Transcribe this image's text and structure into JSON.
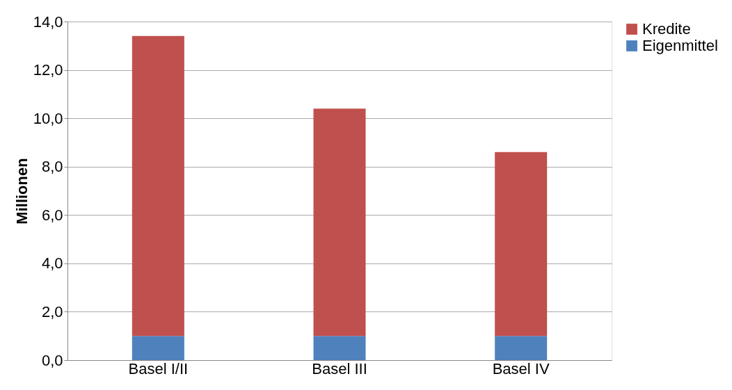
{
  "chart_data": {
    "type": "bar",
    "stacked": true,
    "ylabel": "Millionen",
    "categories": [
      "Basel I/II",
      "Basel III",
      "Basel IV"
    ],
    "series": [
      {
        "name": "Eigenmittel",
        "color": "#4f81bd",
        "values": [
          1.0,
          1.0,
          1.0
        ]
      },
      {
        "name": "Kredite",
        "color": "#c0504d",
        "values": [
          12.4,
          9.4,
          7.6
        ]
      }
    ],
    "ylim": [
      0,
      14
    ],
    "yticks": [
      {
        "value": 0,
        "label": "0,0"
      },
      {
        "value": 2,
        "label": "2,0"
      },
      {
        "value": 4,
        "label": "4,0"
      },
      {
        "value": 6,
        "label": "6,0"
      },
      {
        "value": 8,
        "label": "8,0"
      },
      {
        "value": 10,
        "label": "10,0"
      },
      {
        "value": 12,
        "label": "12,0"
      },
      {
        "value": 14,
        "label": "14,0"
      }
    ],
    "grid": "y",
    "legend": "right"
  }
}
